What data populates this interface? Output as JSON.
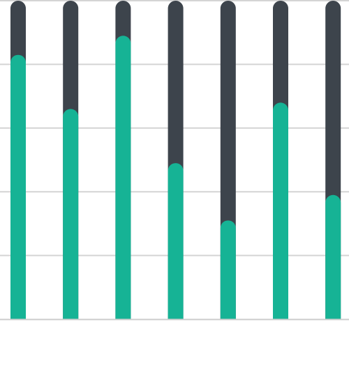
{
  "chart_data": {
    "type": "bar",
    "stacked": true,
    "categories": [
      "",
      "",
      "",
      "",
      "",
      "",
      ""
    ],
    "series": [
      {
        "values": [
          0.83,
          0.66,
          0.89,
          0.49,
          0.31,
          0.68,
          0.39
        ],
        "color": "#16b395"
      },
      {
        "values": [
          0.17,
          0.34,
          0.11,
          0.51,
          0.69,
          0.32,
          0.61
        ],
        "color": "#3d444c"
      }
    ],
    "ylim": [
      0,
      1
    ],
    "y_gridlines": [
      0.2,
      0.4,
      0.6,
      0.8,
      1.0
    ],
    "grid": true,
    "grid_color": "#d4d4d4",
    "baseline_color": "#cccccc",
    "bar_style": "rounded",
    "legend": "none",
    "title": "",
    "xlabel": "",
    "ylabel": ""
  }
}
